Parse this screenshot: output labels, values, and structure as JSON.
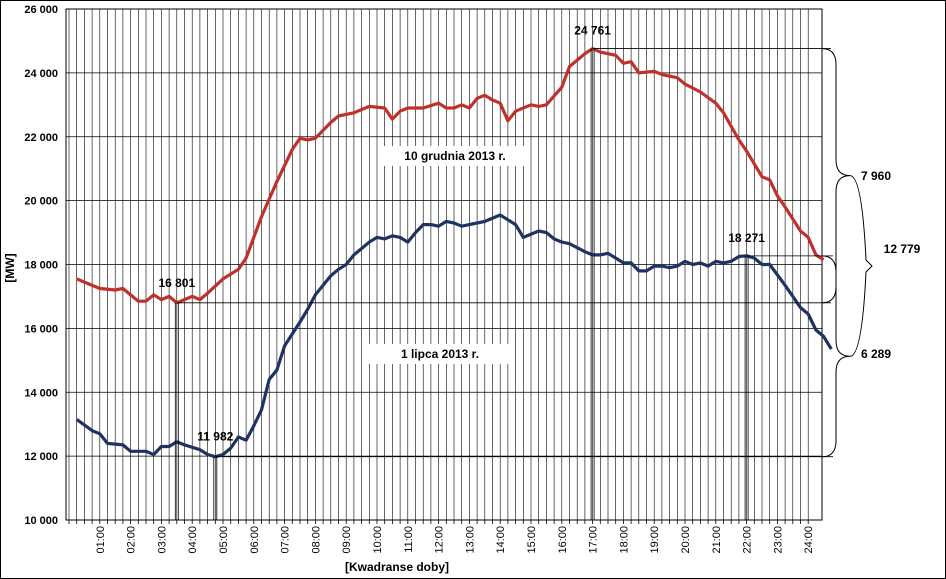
{
  "chart_data": {
    "type": "line",
    "xlabel": "[Kwadranse doby]",
    "ylabel": "[MW]",
    "ylim": [
      10000,
      26000
    ],
    "yticks": [
      10000,
      12000,
      14000,
      16000,
      18000,
      20000,
      22000,
      24000,
      26000
    ],
    "ytick_labels": [
      "10 000",
      "12 000",
      "14 000",
      "16 000",
      "18 000",
      "20 000",
      "22 000",
      "24 000",
      "26 000"
    ],
    "x_hour_labels": [
      "01:00",
      "02:00",
      "03:00",
      "04:00",
      "05:00",
      "06:00",
      "07:00",
      "08:00",
      "09:00",
      "10:00",
      "11:00",
      "12:00",
      "13:00",
      "14:00",
      "15:00",
      "16:00",
      "17:00",
      "18:00",
      "19:00",
      "20:00",
      "21:00",
      "22:00",
      "23:00",
      "24:00"
    ],
    "grid": true,
    "series": [
      {
        "name": "10 grudnia 2013 r.",
        "color": "#c0312b",
        "anchors": [
          [
            0.25,
            17550
          ],
          [
            1.0,
            17250
          ],
          [
            1.5,
            17200
          ],
          [
            1.75,
            17250
          ],
          [
            2.25,
            16850
          ],
          [
            2.5,
            16850
          ],
          [
            2.75,
            17050
          ],
          [
            3.0,
            16900
          ],
          [
            3.25,
            17000
          ],
          [
            3.5,
            16801
          ],
          [
            4.0,
            17000
          ],
          [
            4.25,
            16900
          ],
          [
            4.5,
            17100
          ],
          [
            5.0,
            17550
          ],
          [
            5.5,
            17850
          ],
          [
            5.75,
            18200
          ],
          [
            6.25,
            19500
          ],
          [
            6.75,
            20600
          ],
          [
            7.25,
            21600
          ],
          [
            7.5,
            21950
          ],
          [
            7.75,
            21900
          ],
          [
            8.0,
            21950
          ],
          [
            8.5,
            22450
          ],
          [
            8.75,
            22650
          ],
          [
            9.25,
            22750
          ],
          [
            9.75,
            22950
          ],
          [
            10.25,
            22900
          ],
          [
            10.5,
            22550
          ],
          [
            10.75,
            22800
          ],
          [
            11.0,
            22900
          ],
          [
            11.5,
            22900
          ],
          [
            12.0,
            23050
          ],
          [
            12.25,
            22900
          ],
          [
            12.5,
            22900
          ],
          [
            12.75,
            23000
          ],
          [
            13.0,
            22900
          ],
          [
            13.25,
            23200
          ],
          [
            13.5,
            23300
          ],
          [
            13.75,
            23150
          ],
          [
            14.0,
            23050
          ],
          [
            14.25,
            22500
          ],
          [
            14.5,
            22800
          ],
          [
            15.0,
            23000
          ],
          [
            15.25,
            22950
          ],
          [
            15.5,
            23000
          ],
          [
            16.0,
            23550
          ],
          [
            16.25,
            24200
          ],
          [
            16.5,
            24400
          ],
          [
            16.75,
            24600
          ],
          [
            17.0,
            24761
          ],
          [
            17.25,
            24650
          ],
          [
            17.75,
            24550
          ],
          [
            18.0,
            24300
          ],
          [
            18.25,
            24350
          ],
          [
            18.5,
            24000
          ],
          [
            19.0,
            24050
          ],
          [
            19.25,
            23950
          ],
          [
            19.75,
            23850
          ],
          [
            20.0,
            23650
          ],
          [
            20.5,
            23400
          ],
          [
            21.0,
            23050
          ],
          [
            21.25,
            22750
          ],
          [
            21.75,
            21900
          ],
          [
            22.0,
            21550
          ],
          [
            22.5,
            20750
          ],
          [
            22.75,
            20650
          ],
          [
            23.0,
            20150
          ],
          [
            23.25,
            19800
          ],
          [
            23.75,
            19050
          ],
          [
            24.0,
            18850
          ],
          [
            24.25,
            18300
          ],
          [
            24.5,
            18150
          ]
        ]
      },
      {
        "name": "1 lipca 2013 r.",
        "color": "#1f3363",
        "anchors": [
          [
            0.25,
            13150
          ],
          [
            0.75,
            12800
          ],
          [
            1.0,
            12700
          ],
          [
            1.25,
            12400
          ],
          [
            1.75,
            12350
          ],
          [
            2.0,
            12150
          ],
          [
            2.5,
            12150
          ],
          [
            2.75,
            12050
          ],
          [
            3.0,
            12300
          ],
          [
            3.25,
            12300
          ],
          [
            3.5,
            12450
          ],
          [
            3.75,
            12350
          ],
          [
            4.25,
            12200
          ],
          [
            4.5,
            12050
          ],
          [
            4.75,
            11982
          ],
          [
            5.0,
            12050
          ],
          [
            5.25,
            12250
          ],
          [
            5.5,
            12600
          ],
          [
            5.75,
            12500
          ],
          [
            6.0,
            12950
          ],
          [
            6.25,
            13450
          ],
          [
            6.5,
            14400
          ],
          [
            6.75,
            14700
          ],
          [
            7.0,
            15450
          ],
          [
            7.5,
            16200
          ],
          [
            7.75,
            16600
          ],
          [
            8.0,
            17050
          ],
          [
            8.5,
            17650
          ],
          [
            8.75,
            17850
          ],
          [
            9.0,
            18000
          ],
          [
            9.25,
            18300
          ],
          [
            9.5,
            18500
          ],
          [
            9.75,
            18700
          ],
          [
            10.0,
            18850
          ],
          [
            10.25,
            18800
          ],
          [
            10.5,
            18900
          ],
          [
            10.75,
            18850
          ],
          [
            11.0,
            18700
          ],
          [
            11.25,
            19000
          ],
          [
            11.5,
            19250
          ],
          [
            11.75,
            19250
          ],
          [
            12.0,
            19200
          ],
          [
            12.25,
            19350
          ],
          [
            12.5,
            19300
          ],
          [
            12.75,
            19200
          ],
          [
            13.0,
            19250
          ],
          [
            13.25,
            19300
          ],
          [
            13.5,
            19350
          ],
          [
            14.0,
            19550
          ],
          [
            14.25,
            19400
          ],
          [
            14.5,
            19250
          ],
          [
            14.75,
            18850
          ],
          [
            15.25,
            19050
          ],
          [
            15.5,
            19000
          ],
          [
            15.75,
            18800
          ],
          [
            16.0,
            18700
          ],
          [
            16.25,
            18650
          ],
          [
            16.75,
            18400
          ],
          [
            17.0,
            18300
          ],
          [
            17.25,
            18300
          ],
          [
            17.5,
            18350
          ],
          [
            18.0,
            18050
          ],
          [
            18.25,
            18050
          ],
          [
            18.5,
            17800
          ],
          [
            18.75,
            17800
          ],
          [
            19.0,
            17950
          ],
          [
            19.25,
            17950
          ],
          [
            19.5,
            17900
          ],
          [
            19.75,
            17950
          ],
          [
            20.0,
            18100
          ],
          [
            20.25,
            18000
          ],
          [
            20.5,
            18050
          ],
          [
            20.75,
            17950
          ],
          [
            21.0,
            18100
          ],
          [
            21.25,
            18050
          ],
          [
            21.5,
            18100
          ],
          [
            21.75,
            18250
          ],
          [
            22.0,
            18271
          ],
          [
            22.25,
            18200
          ],
          [
            22.5,
            18000
          ],
          [
            22.75,
            18000
          ],
          [
            23.25,
            17350
          ],
          [
            23.5,
            17000
          ],
          [
            23.75,
            16650
          ],
          [
            24.0,
            16450
          ],
          [
            24.25,
            15950
          ],
          [
            24.5,
            15750
          ],
          [
            24.75,
            15350
          ]
        ]
      }
    ],
    "annotations": {
      "series_labels": [
        "10 grudnia 2013 r.",
        "1 lipca 2013 r."
      ],
      "points": [
        {
          "label": "16 801",
          "x": 3.5,
          "y": 16801
        },
        {
          "label": "24 761",
          "x": 17.0,
          "y": 24761
        },
        {
          "label": "11 982",
          "x": 4.75,
          "y": 11982
        },
        {
          "label": "18 271",
          "x": 22.0,
          "y": 18271
        }
      ],
      "ranges": [
        {
          "label": "7 960",
          "from": 16801,
          "to": 24761
        },
        {
          "label": "12 779",
          "from": 11982,
          "to": 24761
        },
        {
          "label": "6 289",
          "from": 11982,
          "to": 18271
        }
      ]
    }
  }
}
